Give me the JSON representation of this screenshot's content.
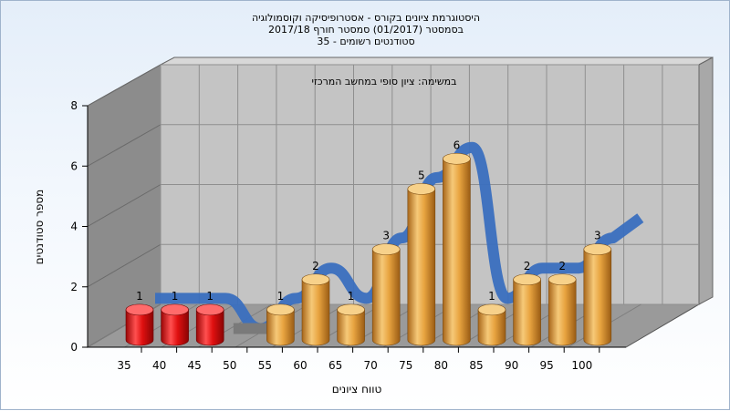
{
  "chart_data": {
    "type": "bar",
    "title_lines": [
      "היסטוגרמת ציונים בקורס - אסטרופיסיקה וקוסמולוגיה",
      "בסמסטר (01/2017) סמסטר חורף 2017/18",
      "סטודנטים רשומים - 35"
    ],
    "annotation": "במשימה: ציון סופי במחשב המרכזי",
    "xlabel": "טווח ציונים",
    "ylabel": "מספר סטודנטים",
    "categories": [
      "35",
      "40",
      "45",
      "50",
      "55",
      "60",
      "65",
      "70",
      "75",
      "80",
      "85",
      "90",
      "95",
      "100"
    ],
    "values": [
      1,
      1,
      1,
      0,
      1,
      2,
      1,
      3,
      5,
      6,
      1,
      2,
      2,
      3
    ],
    "bar_colors": [
      "#e01010",
      "#e01010",
      "#e01010",
      "#e8a440",
      "#e8a440",
      "#e8a440",
      "#e8a440",
      "#e8a440",
      "#e8a440",
      "#e8a440",
      "#e8a440",
      "#e8a440",
      "#e8a440",
      "#e8a440"
    ],
    "yticks": [
      "0",
      "2",
      "4",
      "6",
      "8"
    ],
    "ylim": [
      0,
      8
    ],
    "grid": true,
    "trend_color": "#3a6fbf",
    "trend_shadow_color": "#7a7a7a"
  }
}
